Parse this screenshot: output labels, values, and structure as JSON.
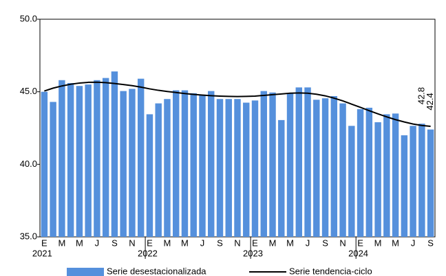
{
  "chart_data": {
    "type": "bar",
    "categories": [
      "E",
      null,
      "M",
      null,
      "M",
      null,
      "J",
      null,
      "S",
      null,
      "N",
      null,
      "E",
      null,
      "M",
      null,
      "M",
      null,
      "J",
      null,
      "S",
      null,
      "N",
      null,
      "E",
      null,
      "M",
      null,
      "M",
      null,
      "J",
      null,
      "S",
      null,
      "N",
      null,
      "E",
      null,
      "M",
      null,
      "M",
      null,
      "J",
      null,
      "S"
    ],
    "year_labels": [
      "2021",
      "2022",
      "2023",
      "2024"
    ],
    "series": [
      {
        "name": "Serie desestacionalizada",
        "type": "bar",
        "color": "#5590dc",
        "values": [
          45.0,
          44.3,
          45.8,
          45.6,
          45.4,
          45.5,
          45.8,
          45.95,
          46.4,
          45.05,
          45.2,
          45.9,
          43.45,
          44.2,
          44.5,
          45.1,
          45.1,
          44.9,
          44.8,
          45.05,
          44.5,
          44.5,
          44.5,
          44.25,
          44.4,
          45.05,
          44.95,
          43.05,
          44.9,
          45.3,
          45.3,
          44.45,
          44.55,
          44.7,
          44.2,
          42.65,
          43.8,
          43.9,
          42.9,
          43.45,
          43.5,
          42.0,
          42.65,
          42.8,
          42.4
        ],
        "value_labels": [
          null,
          null,
          null,
          null,
          null,
          null,
          null,
          null,
          null,
          null,
          null,
          null,
          null,
          null,
          null,
          null,
          null,
          null,
          null,
          null,
          null,
          null,
          null,
          null,
          null,
          null,
          null,
          null,
          null,
          null,
          null,
          null,
          null,
          null,
          null,
          null,
          null,
          null,
          null,
          null,
          null,
          null,
          null,
          "42.8",
          "42.4"
        ]
      },
      {
        "name": "Serie tendencia-ciclo",
        "type": "line",
        "color": "#000000",
        "values": [
          45.05,
          45.25,
          45.4,
          45.52,
          45.6,
          45.65,
          45.66,
          45.63,
          45.57,
          45.5,
          45.42,
          45.32,
          45.2,
          45.1,
          45.02,
          44.95,
          44.88,
          44.82,
          44.77,
          44.73,
          44.7,
          44.68,
          44.67,
          44.68,
          44.7,
          44.75,
          44.8,
          44.85,
          44.9,
          44.92,
          44.9,
          44.83,
          44.72,
          44.56,
          44.37,
          44.15,
          43.93,
          43.7,
          43.48,
          43.27,
          43.08,
          42.92,
          42.78,
          42.68,
          42.62
        ]
      }
    ],
    "ylim": [
      35,
      50
    ],
    "yticks": [
      {
        "value": 35,
        "label": "35.0"
      },
      {
        "value": 40,
        "label": "40.0"
      },
      {
        "value": 45,
        "label": "45.0"
      },
      {
        "value": 50,
        "label": "50.0"
      }
    ],
    "legend": "bottom"
  }
}
